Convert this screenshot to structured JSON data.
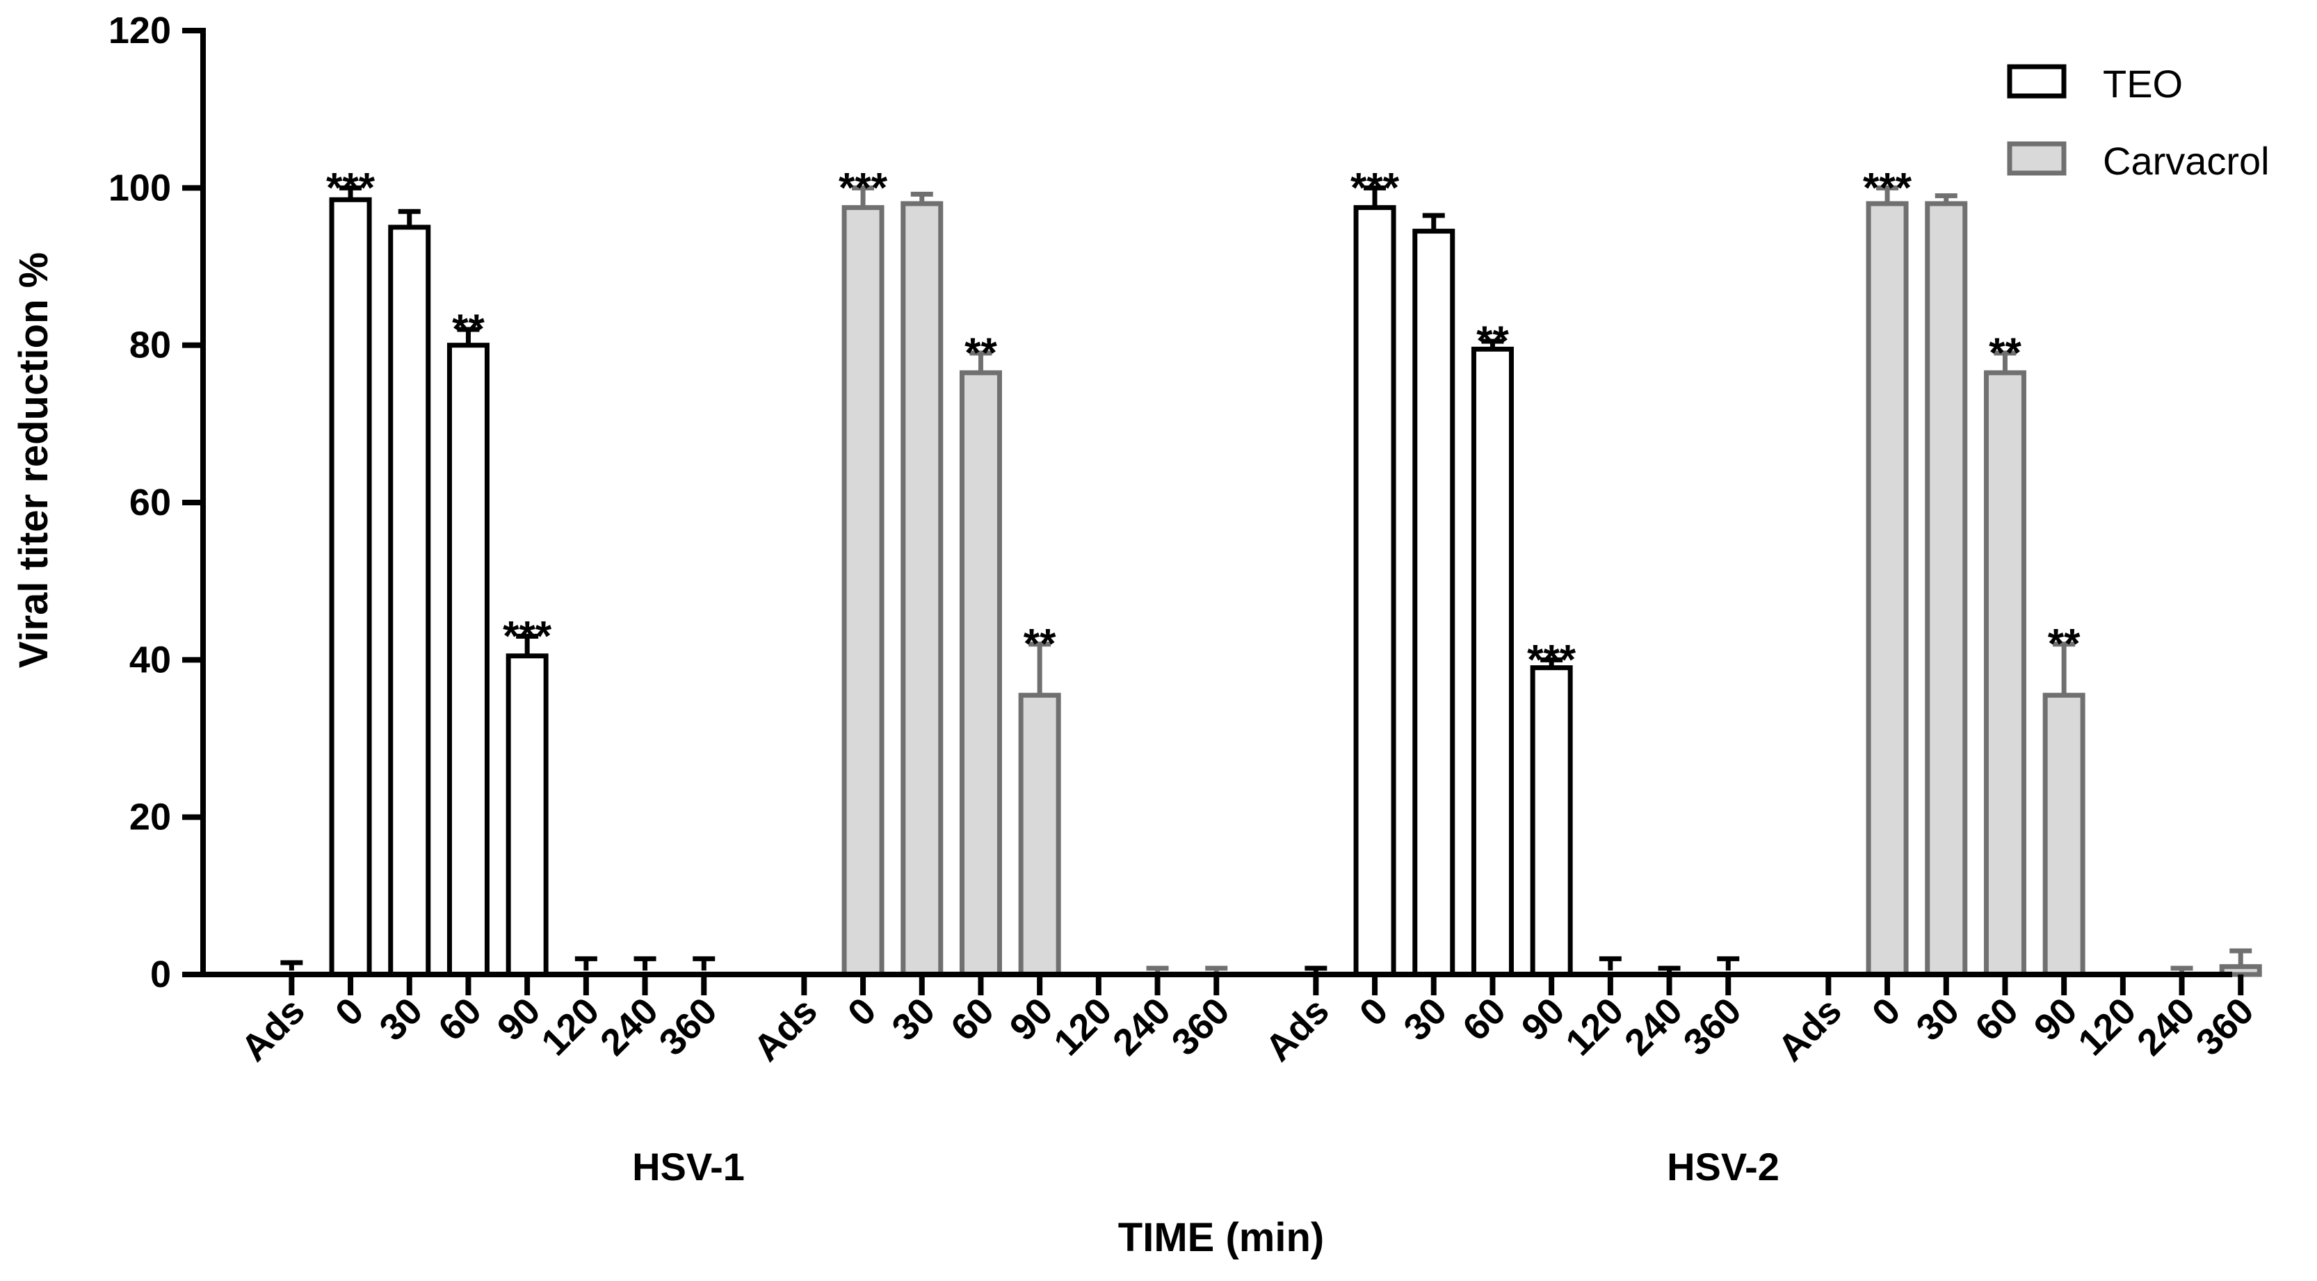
{
  "chart_data": {
    "type": "bar",
    "xlabel": "TIME (min)",
    "ylabel": "Viral titer reduction %",
    "ylim": [
      0,
      120
    ],
    "yticks": [
      0,
      20,
      40,
      60,
      80,
      100,
      120
    ],
    "grid": false,
    "legend_position": "top-right",
    "group_labels": [
      "HSV-1",
      "HSV-2"
    ],
    "categories": [
      "Ads",
      "0",
      "30",
      "60",
      "90",
      "120",
      "240",
      "360"
    ],
    "series": [
      {
        "name": "TEO",
        "color": "#ffffff",
        "stroke": "#000000",
        "error_color": "#000000",
        "groups": [
          {
            "label": "HSV-1",
            "values": [
              0.5,
              98.5,
              95,
              80,
              40.5,
              0.5,
              0.5,
              0.5
            ],
            "errors": [
              1,
              1.5,
              2,
              2,
              2.5,
              1.5,
              1.5,
              1.5
            ],
            "significance": [
              "",
              "***",
              "",
              "**",
              "***",
              "",
              "",
              ""
            ]
          },
          {
            "label": "HSV-2",
            "values": [
              0.3,
              97.5,
              94.5,
              79.5,
              39,
              0.5,
              0.3,
              0.5
            ],
            "errors": [
              0.5,
              2.5,
              2,
              1,
              1,
              1.5,
              0.5,
              1.5
            ],
            "significance": [
              "",
              "***",
              "",
              "**",
              "***",
              "",
              "",
              ""
            ]
          }
        ]
      },
      {
        "name": "Carvacrol",
        "color": "#d9d9d9",
        "stroke": "#707070",
        "error_color": "#707070",
        "groups": [
          {
            "label": "HSV-1",
            "values": [
              0,
              97.5,
              98,
              76.5,
              35.5,
              0,
              0.3,
              0.3
            ],
            "errors": [
              0,
              2.5,
              1.2,
              2.5,
              6.5,
              0,
              0.5,
              0.5
            ],
            "significance": [
              "",
              "***",
              "",
              "**",
              "**",
              "",
              "",
              ""
            ]
          },
          {
            "label": "HSV-2",
            "values": [
              0,
              98,
              98,
              76.5,
              35.5,
              0,
              0.3,
              1
            ],
            "errors": [
              0,
              2,
              1,
              2.5,
              6.5,
              0,
              0.5,
              2
            ],
            "significance": [
              "",
              "***",
              "",
              "**",
              "**",
              "",
              "",
              ""
            ]
          }
        ]
      }
    ]
  }
}
